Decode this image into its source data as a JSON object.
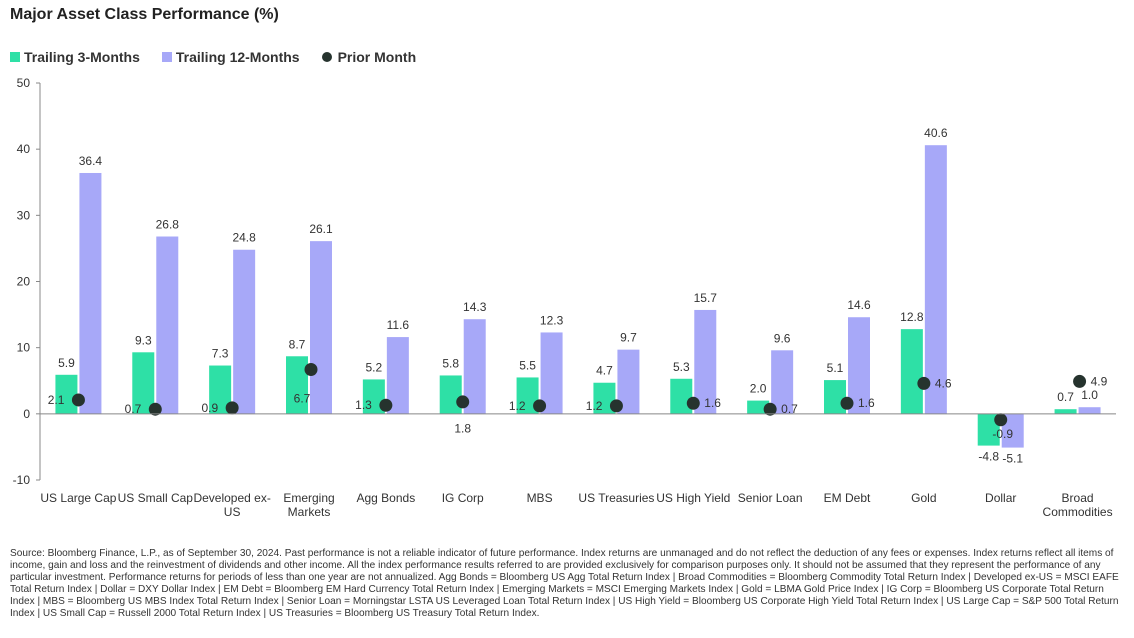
{
  "page": {
    "title": "Major Asset Class Performance (%)",
    "source": "Source: Bloomberg Finance, L.P., as of September 30, 2024. Past performance is not a reliable indicator of future performance. Index returns are unmanaged and do not reflect the deduction of any fees or expenses. Index returns reflect all items of income, gain and loss and the reinvestment of dividends and other income. All the index performance results referred to are provided exclusively for comparison purposes only. It should not be assumed that they represent the performance of any particular investment. Performance returns for periods of less than one year are not annualized. Agg Bonds = Bloomberg US Agg Total Return Index | Broad Commodities = Bloomberg Commodity Total Return Index | Developed ex-US = MSCI EAFE Total Return Index | Dollar = DXY Dollar Index | EM Debt = Bloomberg EM Hard Currency Total Return Index | Emerging Markets = MSCI Emerging Markets Index | Gold = LBMA Gold Price Index | IG Corp = Bloomberg US Corporate Total Return Index | MBS = Bloomberg US MBS Index Total Return Index | Senior Loan = Morningstar LSTA US Leveraged Loan Total Return Index | US High Yield = Bloomberg US Corporate High Yield Total Return Index | US Large Cap = S&P 500 Total Return Index | US Small Cap = Russell 2000 Total Return Index | US Treasuries = Bloomberg US Treasury Total Return Index."
  },
  "colors": {
    "trailing_3m": "#2ee0a6",
    "trailing_12m": "#a7a8f8",
    "prior_month": "#26332e",
    "axis": "#888888",
    "text": "#333333"
  },
  "chart_data": {
    "type": "bar",
    "title": "Major Asset Class Performance (%)",
    "xlabel": "",
    "ylabel": "",
    "ylim": [
      -10,
      50
    ],
    "yticks": [
      -10,
      0,
      10,
      20,
      30,
      40,
      50
    ],
    "grid": false,
    "legend_position": "top-left",
    "categories": [
      [
        "US Large Cap"
      ],
      [
        "US Small Cap"
      ],
      [
        "Developed ex-",
        "US"
      ],
      [
        "Emerging",
        "Markets"
      ],
      [
        "Agg Bonds"
      ],
      [
        "IG Corp"
      ],
      [
        "MBS"
      ],
      [
        "US Treasuries"
      ],
      [
        "US High Yield"
      ],
      [
        "Senior Loan"
      ],
      [
        "EM Debt"
      ],
      [
        "Gold"
      ],
      [
        "Dollar"
      ],
      [
        "Broad",
        "Commodities"
      ]
    ],
    "series": [
      {
        "name": "Trailing 3-Months",
        "kind": "bar",
        "values": [
          5.9,
          9.3,
          7.3,
          8.7,
          5.2,
          5.8,
          5.5,
          4.7,
          5.3,
          2.0,
          5.1,
          12.8,
          -4.8,
          0.7
        ],
        "labels": [
          "5.9",
          "9.3",
          "7.3",
          "8.7",
          "5.2",
          "5.8",
          "5.5",
          "4.7",
          "5.3",
          "2.0",
          "5.1",
          "12.8",
          "-4.8",
          "0.7"
        ]
      },
      {
        "name": "Trailing 12-Months",
        "kind": "bar",
        "values": [
          36.4,
          26.8,
          24.8,
          26.1,
          11.6,
          14.3,
          12.3,
          9.7,
          15.7,
          9.6,
          14.6,
          40.6,
          -5.1,
          1.0
        ],
        "labels": [
          "36.4",
          "26.8",
          "24.8",
          "26.1",
          "11.6",
          "14.3",
          "12.3",
          "9.7",
          "15.7",
          "9.6",
          "14.6",
          "40.6",
          "-5.1",
          "1.0"
        ]
      },
      {
        "name": "Prior Month",
        "kind": "dot",
        "values": [
          2.1,
          0.7,
          0.9,
          6.7,
          1.3,
          1.8,
          1.2,
          1.2,
          1.6,
          0.7,
          1.6,
          4.6,
          -0.9,
          4.9
        ],
        "labels": [
          "2.1",
          "0.7",
          "0.9",
          "6.7",
          "1.3",
          "1.8",
          "1.2",
          "1.2",
          "1.6",
          "0.7",
          "1.6",
          "4.6",
          "-0.9",
          "4.9"
        ]
      }
    ]
  }
}
